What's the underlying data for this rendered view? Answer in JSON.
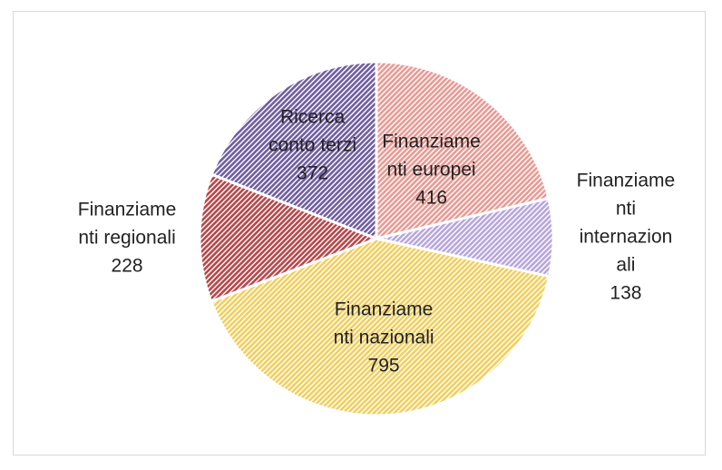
{
  "chart_data": {
    "type": "pie",
    "categories": [
      "Finanziamenti europei",
      "Finanziamenti internazionali",
      "Finanziamenti nazionali",
      "Finanziamenti regionali",
      "Ricerca conto terzi"
    ],
    "values": [
      416,
      138,
      795,
      228,
      372
    ],
    "colors": [
      "#e89a94",
      "#b7a6dc",
      "#f1cf5e",
      "#b5474a",
      "#6f5e9f"
    ]
  }
}
